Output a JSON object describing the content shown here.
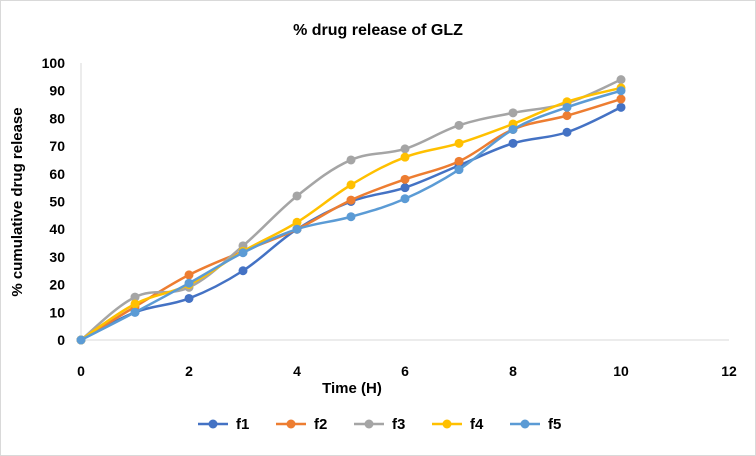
{
  "chart_data": {
    "type": "line",
    "title": "% drug release of GLZ",
    "xlabel": "Time (H)",
    "ylabel": "% cumulative drug release",
    "xlim": [
      0,
      12
    ],
    "ylim": [
      0,
      100
    ],
    "xticks": [
      0,
      2,
      4,
      6,
      8,
      10,
      12
    ],
    "yticks": [
      0,
      10,
      20,
      30,
      40,
      50,
      60,
      70,
      80,
      90,
      100
    ],
    "grid": false,
    "legend_position": "bottom",
    "x": [
      0,
      1,
      2,
      3,
      4,
      5,
      6,
      7,
      8,
      9,
      10
    ],
    "series": [
      {
        "name": "f1",
        "color": "#4472C4",
        "values": [
          0,
          10,
          15,
          25,
          40,
          50,
          55,
          63,
          71,
          75,
          84
        ]
      },
      {
        "name": "f2",
        "color": "#ED7D31",
        "values": [
          0,
          12,
          23.5,
          32,
          40,
          50.5,
          58,
          64.5,
          76,
          81,
          87
        ]
      },
      {
        "name": "f3",
        "color": "#A5A5A5",
        "values": [
          0,
          15.5,
          19,
          34,
          52,
          65,
          69,
          77.5,
          82,
          85.5,
          94
        ]
      },
      {
        "name": "f4",
        "color": "#FFC000",
        "values": [
          0,
          13,
          20,
          32,
          42.5,
          56,
          66,
          71,
          78,
          86,
          91
        ]
      },
      {
        "name": "f5",
        "color": "#5B9BD5",
        "values": [
          0,
          10,
          20.5,
          31.5,
          40,
          44.5,
          51,
          61.5,
          76,
          84,
          90
        ]
      }
    ]
  }
}
